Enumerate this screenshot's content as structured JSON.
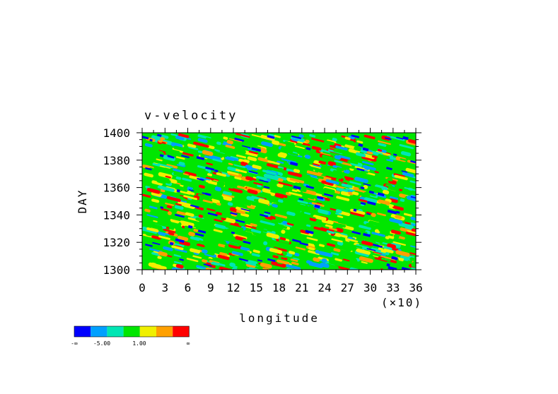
{
  "chart_data": {
    "type": "heatmap",
    "title": "v-velocity",
    "xlabel": "longitude",
    "ylabel": "DAY",
    "x_multiplier": "(×10)",
    "xlim": [
      0,
      36
    ],
    "ylim": [
      1300,
      1400
    ],
    "x_ticks": [
      "0",
      "3",
      "6",
      "9",
      "12",
      "15",
      "18",
      "21",
      "24",
      "27",
      "30",
      "33",
      "36"
    ],
    "y_ticks": [
      "1300",
      "1320",
      "1340",
      "1360",
      "1380",
      "1400"
    ],
    "colorbar": {
      "colors": [
        "#0000ff",
        "#00a0ff",
        "#00e6b4",
        "#00e600",
        "#f0f000",
        "#ffa000",
        "#ff0000"
      ],
      "labels": [
        "-∞",
        "-5.00",
        "1.00",
        "∞"
      ]
    }
  }
}
